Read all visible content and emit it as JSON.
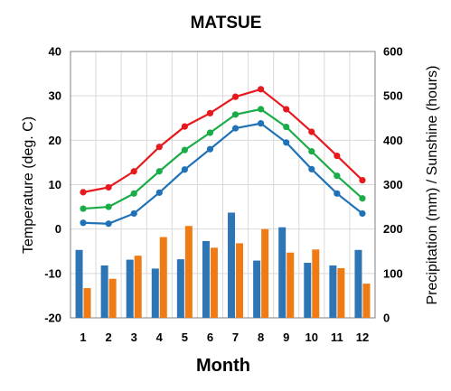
{
  "chart_data": {
    "type": "line+bar",
    "title": "MATSUE",
    "xlabel": "Month",
    "ylabel_left": "Temperature (deg. C)",
    "ylabel_right": "Precipitation (mm) / Sunshine (hours)",
    "categories": [
      "1",
      "2",
      "3",
      "4",
      "5",
      "6",
      "7",
      "8",
      "9",
      "10",
      "11",
      "12"
    ],
    "ylim_left": [
      -20,
      40
    ],
    "yticks_left": [
      "-20",
      "-10",
      "0",
      "10",
      "20",
      "30",
      "40"
    ],
    "ylim_right": [
      0,
      600
    ],
    "yticks_right": [
      "0",
      "100",
      "200",
      "300",
      "400",
      "500",
      "600"
    ],
    "grid": true,
    "line_series": [
      {
        "values": [
          8.3,
          9.4,
          13.0,
          18.5,
          23.1,
          26.1,
          29.8,
          31.5,
          27.0,
          21.9,
          16.5,
          11.0
        ],
        "color": "#e8191e"
      },
      {
        "values": [
          4.6,
          5.0,
          8.0,
          13.0,
          17.8,
          21.7,
          25.8,
          27.0,
          23.0,
          17.5,
          12.0,
          6.9
        ],
        "color": "#1aac48"
      },
      {
        "values": [
          1.4,
          1.2,
          3.5,
          8.2,
          13.4,
          18.0,
          22.7,
          23.8,
          19.5,
          13.5,
          8.0,
          3.5
        ],
        "color": "#1f72b8"
      }
    ],
    "bar_series": [
      {
        "values": [
          153,
          118,
          131,
          111,
          132,
          173,
          237,
          129,
          204,
          124,
          118,
          153
        ],
        "color": "#2e75b6"
      },
      {
        "values": [
          67,
          88,
          140,
          182,
          207,
          158,
          168,
          200,
          147,
          154,
          112,
          77
        ],
        "color": "#f07b14"
      }
    ]
  }
}
